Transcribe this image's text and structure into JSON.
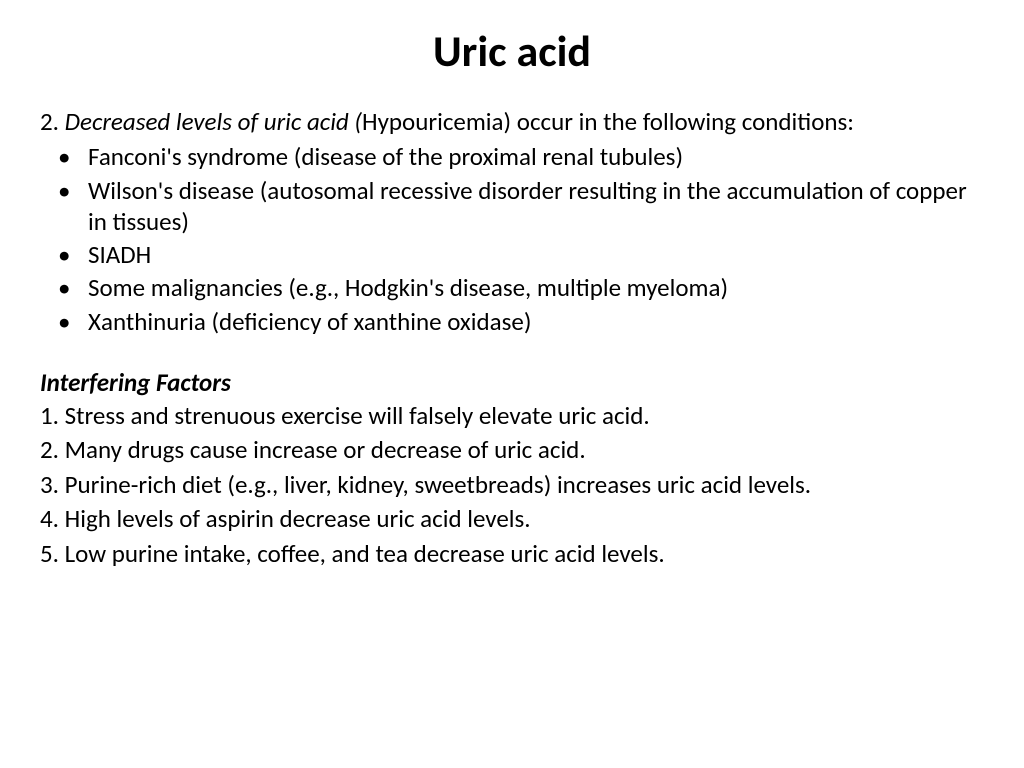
{
  "title": "Uric acid",
  "intro": {
    "number": "2. ",
    "italic_part": "Decreased levels of uric acid (",
    "rest": "Hypouricemia) occur in the following conditions:"
  },
  "bullets": [
    "Fanconi's syndrome (disease of the proximal renal tubules)",
    "Wilson's disease (autosomal recessive disorder resulting in the accumulation of copper in tissues)",
    "SIADH",
    "Some malignancies (e.g., Hodgkin's disease, multiple myeloma)",
    "Xanthinuria (deficiency of xanthine oxidase)"
  ],
  "subheading": "Interfering Factors",
  "factors": [
    "1. Stress and strenuous exercise will falsely elevate uric acid.",
    "2. Many drugs cause increase or decrease of uric acid.",
    "3. Purine-rich diet (e.g., liver, kidney, sweetbreads) increases uric acid levels.",
    "4. High levels of aspirin decrease uric acid levels.",
    "5. Low purine intake, coffee, and tea decrease uric acid levels."
  ]
}
